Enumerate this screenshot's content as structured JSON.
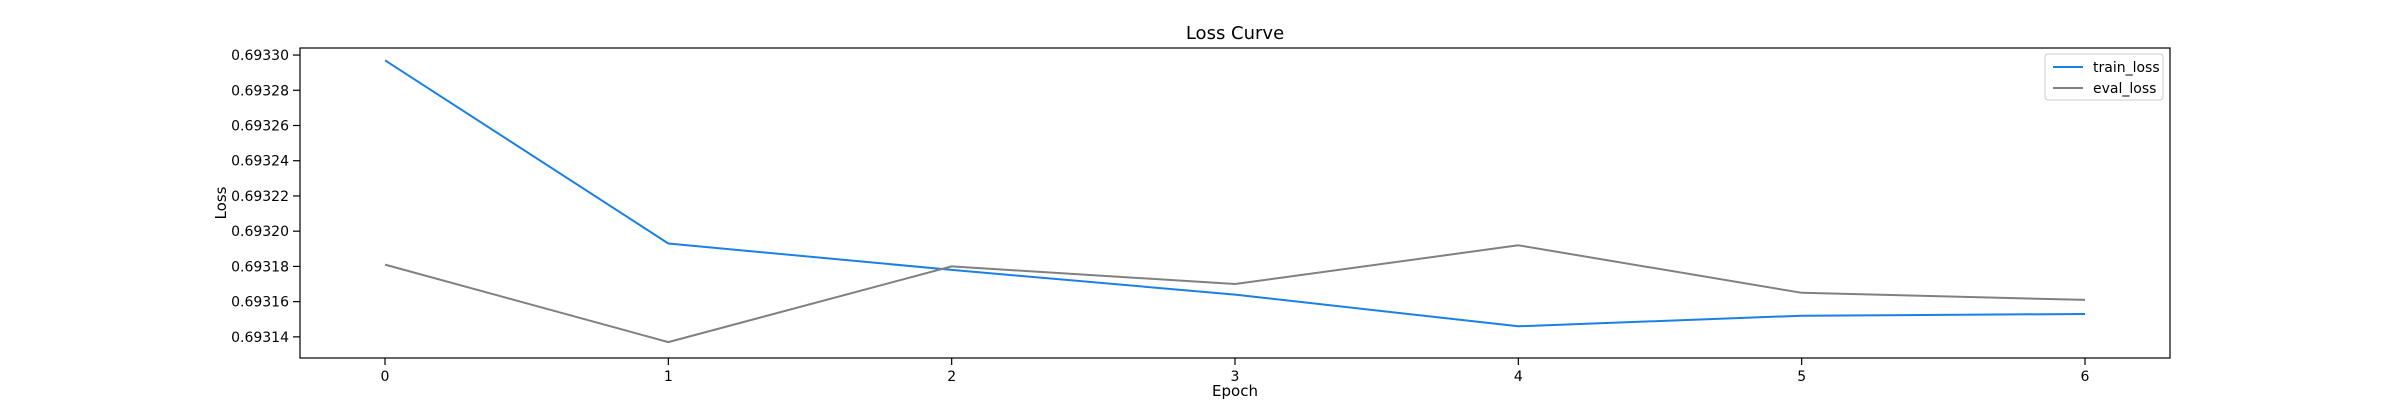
{
  "chart_data": {
    "type": "line",
    "title": "Loss Curve",
    "xlabel": "Epoch",
    "ylabel": "Loss",
    "x": [
      0,
      1,
      2,
      3,
      4,
      5,
      6
    ],
    "xlim": [
      -0.3,
      6.3
    ],
    "ylim": [
      0.693128,
      0.693304
    ],
    "xticks": [
      "0",
      "1",
      "2",
      "3",
      "4",
      "5",
      "6"
    ],
    "yticks": [
      0.69314,
      0.69316,
      0.69318,
      0.6932,
      0.69322,
      0.69324,
      0.69326,
      0.69328,
      0.6933
    ],
    "ytick_labels": [
      "0.69314",
      "0.69316",
      "0.69318",
      "0.69320",
      "0.69322",
      "0.69324",
      "0.69326",
      "0.69328",
      "0.69330"
    ],
    "grid": false,
    "legend": "top-right",
    "series": [
      {
        "name": "train_loss",
        "color": "#1a80e5",
        "values": [
          0.693297,
          0.693193,
          0.693178,
          0.693164,
          0.693146,
          0.693152,
          0.693153
        ]
      },
      {
        "name": "eval_loss",
        "color": "#808080",
        "values": [
          0.693181,
          0.693137,
          0.69318,
          0.69317,
          0.693192,
          0.693165,
          0.693161
        ]
      }
    ]
  }
}
